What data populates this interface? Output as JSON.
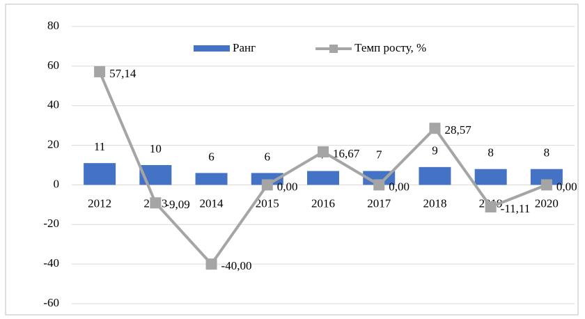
{
  "chart_data": {
    "type": "combo",
    "categories": [
      "2012",
      "2013",
      "2014",
      "2015",
      "2016",
      "2017",
      "2018",
      "2019",
      "2020"
    ],
    "series": [
      {
        "name": "Ранг",
        "type": "bar",
        "color": "#4472c4",
        "values": [
          11,
          10,
          6,
          6,
          7,
          7,
          9,
          8,
          8
        ]
      },
      {
        "name": "Темп росту, %",
        "type": "line",
        "color": "#a5a5a5",
        "values": [
          57.14,
          -9.09,
          -40.0,
          0.0,
          16.67,
          0.0,
          28.57,
          -11.11,
          0.0
        ],
        "value_labels": [
          "57,14",
          "-9,09",
          "-40,00",
          "0,00",
          "16,67",
          "0,00",
          "28,57",
          "-11,11",
          "0,00"
        ]
      }
    ],
    "ylim": [
      -60,
      80
    ],
    "yticks": [
      -60,
      -40,
      -20,
      0,
      20,
      40,
      60,
      80
    ],
    "grid": true,
    "legend": "top"
  }
}
